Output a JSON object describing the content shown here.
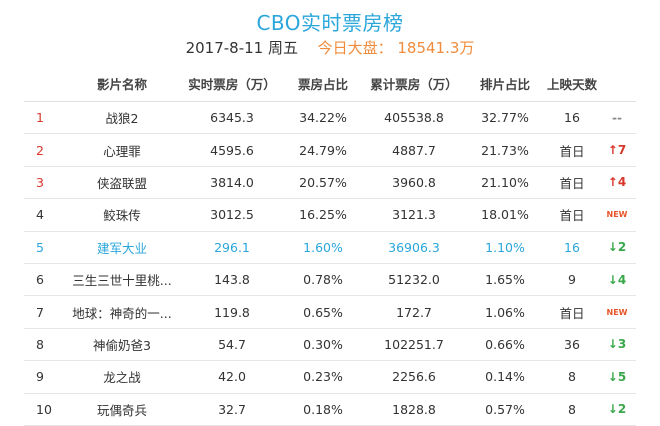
{
  "page": {
    "title": "CBO实时票房榜",
    "date": "2017-8-11 周五",
    "market_label": "今日大盘：",
    "market_value": "18541.3万"
  },
  "columns": [
    "影片名称",
    "实时票房（万）",
    "票房占比",
    "累计票房（万）",
    "排片占比",
    "上映天数"
  ],
  "rows": [
    {
      "rank": "1",
      "name": "战狼2",
      "realtime": "6345.3",
      "share": "34.22%",
      "cumulative": "405538.8",
      "schedule": "32.77%",
      "days": "16",
      "trend_dir": "same",
      "trend_text": "--"
    },
    {
      "rank": "2",
      "name": "心理罪",
      "realtime": "4595.6",
      "share": "24.79%",
      "cumulative": "4887.7",
      "schedule": "21.73%",
      "days": "首日",
      "trend_dir": "up",
      "trend_text": "7"
    },
    {
      "rank": "3",
      "name": "侠盗联盟",
      "realtime": "3814.0",
      "share": "20.57%",
      "cumulative": "3960.8",
      "schedule": "21.10%",
      "days": "首日",
      "trend_dir": "up",
      "trend_text": "4"
    },
    {
      "rank": "4",
      "name": "鲛珠传",
      "realtime": "3012.5",
      "share": "16.25%",
      "cumulative": "3121.3",
      "schedule": "18.01%",
      "days": "首日",
      "trend_dir": "new",
      "trend_text": "NEW"
    },
    {
      "rank": "5",
      "name": "建军大业",
      "realtime": "296.1",
      "share": "1.60%",
      "cumulative": "36906.3",
      "schedule": "1.10%",
      "days": "16",
      "trend_dir": "down",
      "trend_text": "2"
    },
    {
      "rank": "6",
      "name": "三生三世十里桃...",
      "realtime": "143.8",
      "share": "0.78%",
      "cumulative": "51232.0",
      "schedule": "1.65%",
      "days": "9",
      "trend_dir": "down",
      "trend_text": "4"
    },
    {
      "rank": "7",
      "name": "地球：神奇的一...",
      "realtime": "119.8",
      "share": "0.65%",
      "cumulative": "172.7",
      "schedule": "1.06%",
      "days": "首日",
      "trend_dir": "new",
      "trend_text": "NEW"
    },
    {
      "rank": "8",
      "name": "神偷奶爸3",
      "realtime": "54.7",
      "share": "0.30%",
      "cumulative": "102251.7",
      "schedule": "0.66%",
      "days": "36",
      "trend_dir": "down",
      "trend_text": "3"
    },
    {
      "rank": "9",
      "name": "龙之战",
      "realtime": "42.0",
      "share": "0.23%",
      "cumulative": "2256.6",
      "schedule": "0.14%",
      "days": "8",
      "trend_dir": "down",
      "trend_text": "5"
    },
    {
      "rank": "10",
      "name": "玩偶奇兵",
      "realtime": "32.7",
      "share": "0.18%",
      "cumulative": "1828.8",
      "schedule": "0.57%",
      "days": "8",
      "trend_dir": "down",
      "trend_text": "2"
    }
  ],
  "highlight_rank": "5",
  "colors": {
    "title": "#2aa6db",
    "highlight": "#2aa6db",
    "top_rank": "#d8372c",
    "market_value": "#f08c3c",
    "trend_up": "#d8372c",
    "trend_down": "#39a84a",
    "trend_new": "#e8542c"
  },
  "icons": {
    "up": "arrow-up-icon",
    "down": "arrow-down-icon"
  }
}
